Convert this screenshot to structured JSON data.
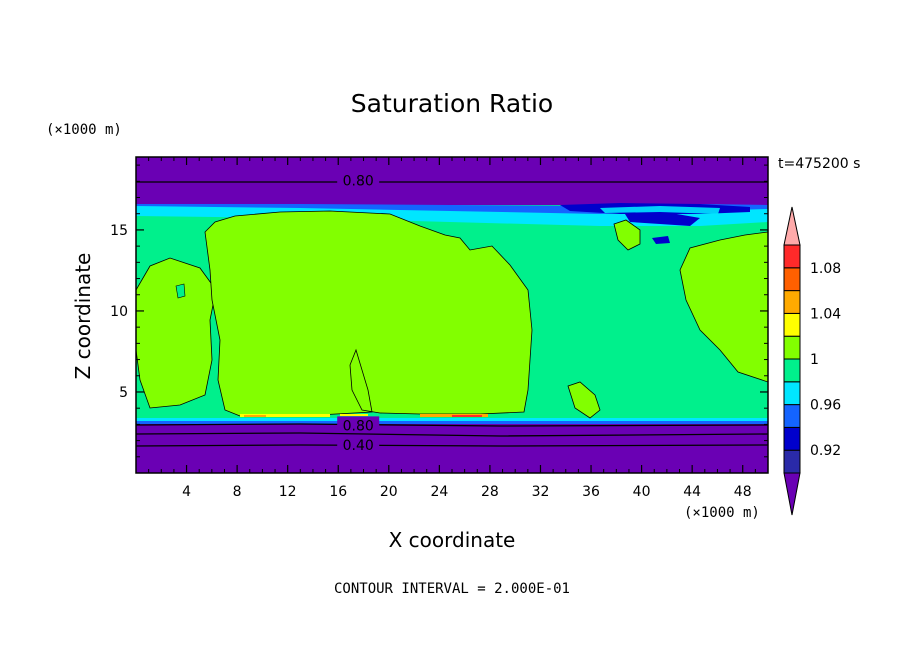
{
  "chart_data": {
    "type": "heatmap",
    "title": "Saturation Ratio",
    "xlabel": "X coordinate",
    "ylabel": "Z coordinate",
    "x_scale_label": "(×1000 m)",
    "y_scale_label": "(×1000 m)",
    "time_label": "t=475200 s",
    "footer": "CONTOUR INTERVAL = 2.000E-01",
    "xlim": [
      0,
      50
    ],
    "ylim": [
      0,
      19.5
    ],
    "x_ticks": [
      4,
      8,
      12,
      16,
      20,
      24,
      28,
      32,
      36,
      40,
      44,
      48
    ],
    "y_ticks": [
      5,
      10,
      15
    ],
    "contour_labels": [
      {
        "value": "0.80",
        "x": 17.5,
        "z": 18.1
      },
      {
        "value": "0.80",
        "x": 17.5,
        "z": 3.0
      },
      {
        "value": "0.40",
        "x": 17.5,
        "z": 1.8
      }
    ],
    "colorbar": {
      "levels": [
        0.92,
        0.94,
        0.96,
        0.98,
        1.0,
        1.02,
        1.04,
        1.06,
        1.08,
        1.1
      ],
      "tick_labels": [
        "0.92",
        "0.96",
        "1",
        "1.04",
        "1.08"
      ],
      "colors": [
        "#6a00b4",
        "#2a2aa8",
        "#0000cc",
        "#1464ff",
        "#00e6ff",
        "#00f08c",
        "#82ff00",
        "#ffff00",
        "#ffaa00",
        "#ff6000",
        "#ff2a2a",
        "#ffaaaa"
      ]
    }
  }
}
